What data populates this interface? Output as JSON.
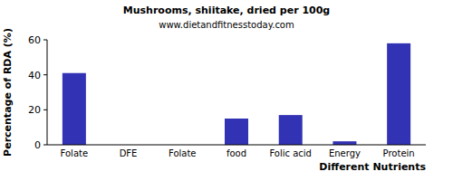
{
  "chart_data": {
    "type": "bar",
    "title": "Mushrooms, shiitake, dried per 100g",
    "subtitle": "www.dietandfitnesstoday.com",
    "x_label": "Different Nutrients",
    "y_label": "Percentage of RDA (%)",
    "categories": [
      "Folate",
      "DFE",
      "Folate",
      "food",
      "Folic acid",
      "Energy",
      "Protein"
    ],
    "values": [
      41,
      0,
      0,
      15,
      17,
      2,
      58
    ],
    "color": "#3232b4",
    "ylim": [
      0,
      60
    ],
    "yticks": [
      0,
      20,
      40,
      60
    ],
    "grid": false
  }
}
